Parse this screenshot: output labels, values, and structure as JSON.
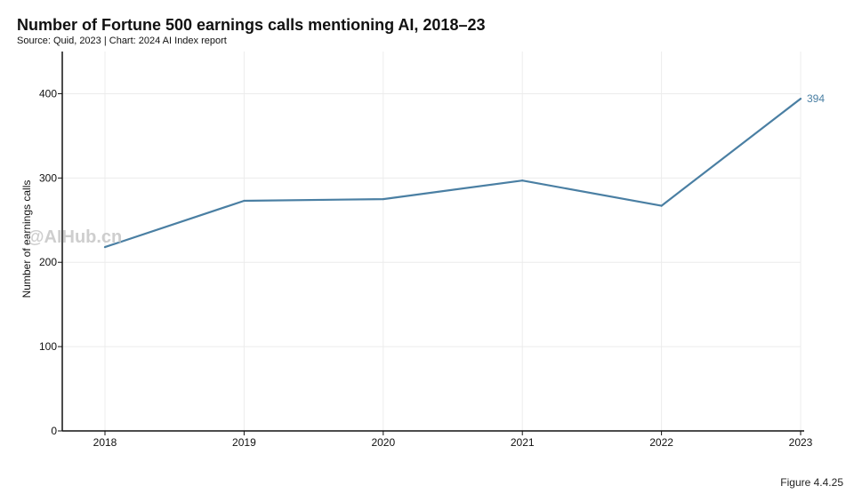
{
  "header": {
    "title": "Number of Fortune 500 earnings calls mentioning AI, 2018–23",
    "subtitle": "Source: Quid, 2023 | Chart: 2024 AI Index report"
  },
  "footer": {
    "figure": "Figure 4.4.25"
  },
  "watermark": "@AIHub.cn",
  "colors": {
    "line": "#4a7fa3",
    "axis": "#111111",
    "grid": "#ececec"
  },
  "chart_data": {
    "type": "line",
    "title": "Number of Fortune 500 earnings calls mentioning AI, 2018–23",
    "xlabel": "",
    "ylabel": "Number of earnings calls",
    "x": [
      "2018",
      "2019",
      "2020",
      "2021",
      "2022",
      "2023"
    ],
    "series": [
      {
        "name": "Earnings calls mentioning AI",
        "values": [
          218,
          273,
          275,
          297,
          267,
          394
        ]
      }
    ],
    "ylim": [
      0,
      450
    ],
    "yticks": [
      0,
      100,
      200,
      300,
      400
    ],
    "grid": true,
    "annotations": [
      {
        "x": "2023",
        "text": "394"
      }
    ]
  }
}
